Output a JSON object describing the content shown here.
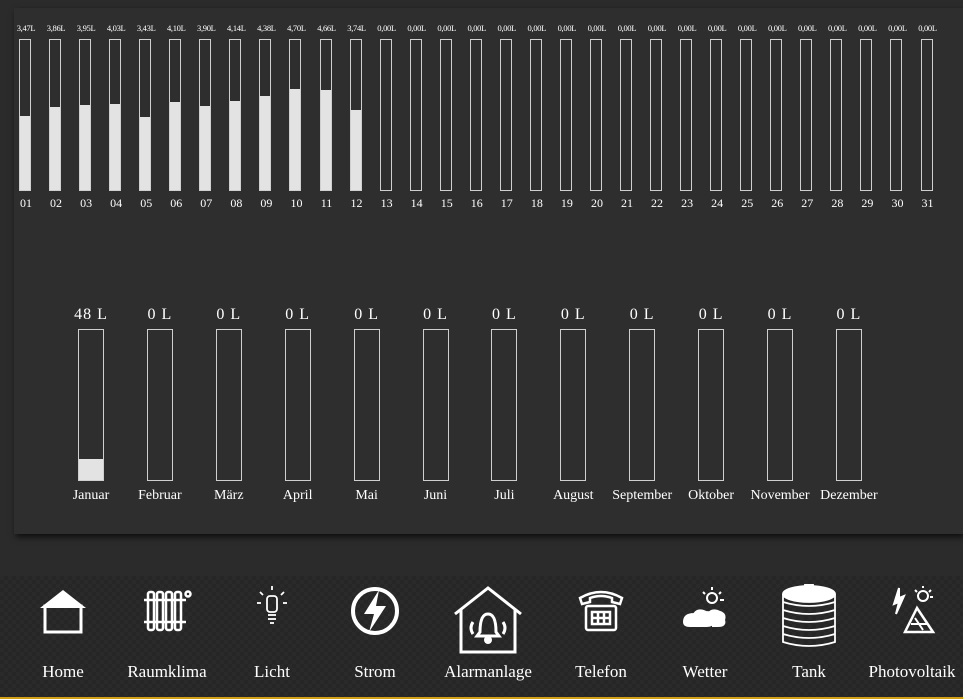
{
  "daily": {
    "max": 7.0,
    "days": [
      {
        "label": "01",
        "value_text": "3,47L",
        "value": 3.47
      },
      {
        "label": "02",
        "value_text": "3,86L",
        "value": 3.86
      },
      {
        "label": "03",
        "value_text": "3,95L",
        "value": 3.95
      },
      {
        "label": "04",
        "value_text": "4,03L",
        "value": 4.03
      },
      {
        "label": "05",
        "value_text": "3,43L",
        "value": 3.43
      },
      {
        "label": "06",
        "value_text": "4,10L",
        "value": 4.1
      },
      {
        "label": "07",
        "value_text": "3,90L",
        "value": 3.9
      },
      {
        "label": "08",
        "value_text": "4,14L",
        "value": 4.14
      },
      {
        "label": "09",
        "value_text": "4,38L",
        "value": 4.38
      },
      {
        "label": "10",
        "value_text": "4,70L",
        "value": 4.7
      },
      {
        "label": "11",
        "value_text": "4,66L",
        "value": 4.66
      },
      {
        "label": "12",
        "value_text": "3,74L",
        "value": 3.74
      },
      {
        "label": "13",
        "value_text": "0,00L",
        "value": 0
      },
      {
        "label": "14",
        "value_text": "0,00L",
        "value": 0
      },
      {
        "label": "15",
        "value_text": "0,00L",
        "value": 0
      },
      {
        "label": "16",
        "value_text": "0,00L",
        "value": 0
      },
      {
        "label": "17",
        "value_text": "0,00L",
        "value": 0
      },
      {
        "label": "18",
        "value_text": "0,00L",
        "value": 0
      },
      {
        "label": "19",
        "value_text": "0,00L",
        "value": 0
      },
      {
        "label": "20",
        "value_text": "0,00L",
        "value": 0
      },
      {
        "label": "21",
        "value_text": "0,00L",
        "value": 0
      },
      {
        "label": "22",
        "value_text": "0,00L",
        "value": 0
      },
      {
        "label": "23",
        "value_text": "0,00L",
        "value": 0
      },
      {
        "label": "24",
        "value_text": "0,00L",
        "value": 0
      },
      {
        "label": "25",
        "value_text": "0,00L",
        "value": 0
      },
      {
        "label": "26",
        "value_text": "0,00L",
        "value": 0
      },
      {
        "label": "27",
        "value_text": "0,00L",
        "value": 0
      },
      {
        "label": "28",
        "value_text": "0,00L",
        "value": 0
      },
      {
        "label": "29",
        "value_text": "0,00L",
        "value": 0
      },
      {
        "label": "30",
        "value_text": "0,00L",
        "value": 0
      },
      {
        "label": "31",
        "value_text": "0,00L",
        "value": 0
      }
    ]
  },
  "monthly": {
    "max": 350,
    "months": [
      {
        "label": "Januar",
        "value_text": "48 L",
        "value": 48
      },
      {
        "label": "Februar",
        "value_text": "0 L",
        "value": 0
      },
      {
        "label": "März",
        "value_text": "0 L",
        "value": 0
      },
      {
        "label": "April",
        "value_text": "0 L",
        "value": 0
      },
      {
        "label": "Mai",
        "value_text": "0 L",
        "value": 0
      },
      {
        "label": "Juni",
        "value_text": "0 L",
        "value": 0
      },
      {
        "label": "Juli",
        "value_text": "0 L",
        "value": 0
      },
      {
        "label": "August",
        "value_text": "0 L",
        "value": 0
      },
      {
        "label": "September",
        "value_text": "0 L",
        "value": 0
      },
      {
        "label": "Oktober",
        "value_text": "0 L",
        "value": 0
      },
      {
        "label": "November",
        "value_text": "0 L",
        "value": 0
      },
      {
        "label": "Dezember",
        "value_text": "0 L",
        "value": 0
      }
    ]
  },
  "nav": {
    "items": [
      {
        "label": "Home",
        "icon": "home-icon"
      },
      {
        "label": "Raumklima",
        "icon": "radiator-icon"
      },
      {
        "label": "Licht",
        "icon": "bulb-icon"
      },
      {
        "label": "Strom",
        "icon": "lightning-icon"
      },
      {
        "label": "Alarmanlage",
        "icon": "alarm-house-icon"
      },
      {
        "label": "Telefon",
        "icon": "telephone-icon"
      },
      {
        "label": "Wetter",
        "icon": "weather-icon"
      },
      {
        "label": "Tank",
        "icon": "tank-icon"
      },
      {
        "label": "Photovoltaik",
        "icon": "solar-panel-icon"
      }
    ]
  },
  "colors": {
    "background": "#2b2b2b",
    "panel": "#2e2e2e",
    "fill": "#e3e3e3",
    "accent": "#d4a017"
  }
}
